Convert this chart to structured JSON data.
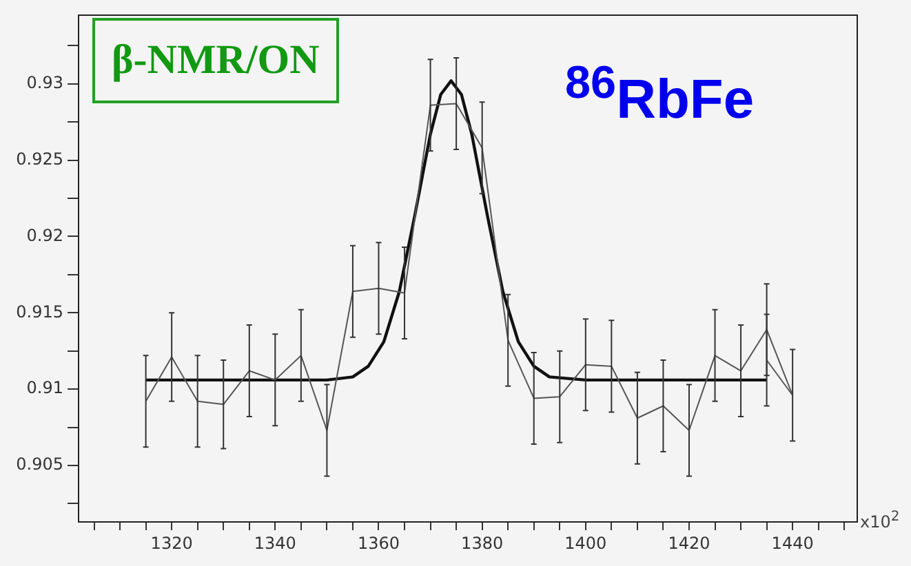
{
  "chart_data": {
    "type": "line",
    "xlim": [
      1302,
      1452.5
    ],
    "ylim": [
      0.9013,
      0.9345
    ],
    "xticks": [
      {
        "value": 1305,
        "label": null
      },
      {
        "value": 1310,
        "label": null
      },
      {
        "value": 1315,
        "label": null
      },
      1320,
      {
        "value": 1325,
        "label": null
      },
      {
        "value": 1330,
        "label": null
      },
      {
        "value": 1335,
        "label": null
      },
      1340,
      {
        "value": 1345,
        "label": null
      },
      {
        "value": 1350,
        "label": null
      },
      {
        "value": 1355,
        "label": null
      },
      1360,
      {
        "value": 1365,
        "label": null
      },
      {
        "value": 1370,
        "label": null
      },
      {
        "value": 1375,
        "label": null
      },
      1380,
      {
        "value": 1385,
        "label": null
      },
      {
        "value": 1390,
        "label": null
      },
      {
        "value": 1395,
        "label": null
      },
      1400,
      {
        "value": 1405,
        "label": null
      },
      {
        "value": 1410,
        "label": null
      },
      {
        "value": 1415,
        "label": null
      },
      1420,
      {
        "value": 1425,
        "label": null
      },
      {
        "value": 1430,
        "label": null
      },
      {
        "value": 1435,
        "label": null
      },
      1440,
      {
        "value": 1445,
        "label": null
      },
      {
        "value": 1450,
        "label": null
      }
    ],
    "yticks": [
      {
        "value": 0.9025,
        "label": null
      },
      0.905,
      {
        "value": 0.9075,
        "label": null
      },
      0.91,
      {
        "value": 0.9125,
        "label": null
      },
      0.915,
      {
        "value": 0.9175,
        "label": null
      },
      0.92,
      {
        "value": 0.9225,
        "label": null
      },
      0.925,
      {
        "value": 0.9275,
        "label": null
      },
      0.93,
      {
        "value": 0.9325,
        "label": null
      }
    ],
    "grid": false,
    "legend": false,
    "marker": "none",
    "annotations": [
      "β-NMR/ON",
      "$^{86}$RbFe",
      "x10$^{2}$"
    ],
    "series": [
      {
        "color": "#555555",
        "x": [
          1315,
          1320,
          1325,
          1330,
          1335,
          1340,
          1345,
          1350,
          1355,
          1360,
          1365,
          1370,
          1375,
          1380,
          1385,
          1390,
          1395,
          1400,
          1405,
          1410,
          1415,
          1420,
          1425,
          1430,
          1435,
          1440
        ],
        "values": [
          0.9092,
          0.9121,
          0.9092,
          0.909,
          0.9112,
          0.9106,
          0.9122,
          0.9073,
          0.9164,
          0.9166,
          0.9163,
          0.9286,
          0.9287,
          0.9258,
          0.9132,
          0.9094,
          0.9095,
          0.9116,
          0.9115,
          0.9081,
          0.9089,
          0.9073,
          0.9122,
          0.9112,
          0.9139,
          0.9096
        ],
        "errors": [
          0.003,
          0.0029,
          0.003,
          0.0029,
          0.003,
          0.003,
          0.003,
          0.003,
          0.003,
          0.003,
          0.003,
          0.003,
          0.003,
          0.003,
          0.003,
          0.003,
          0.003,
          0.003,
          0.003,
          0.003,
          0.003,
          0.003,
          0.003,
          0.003,
          0.003,
          0.003
        ]
      },
      {
        "color": "#555555",
        "x": [
          1435,
          1440
        ],
        "values": [
          0.9119,
          0.9096
        ],
        "errors": [
          0.003,
          null
        ]
      },
      {
        "color": "#111111",
        "x": [
          1315,
          1350,
          1355,
          1358,
          1361,
          1364,
          1367,
          1370,
          1372,
          1374,
          1376,
          1378,
          1381,
          1384,
          1387,
          1390,
          1393,
          1400,
          1435
        ],
        "values": [
          0.9106,
          0.9106,
          0.9108,
          0.9115,
          0.9131,
          0.9164,
          0.9214,
          0.9267,
          0.9293,
          0.9302,
          0.9293,
          0.9267,
          0.9214,
          0.9164,
          0.9131,
          0.9115,
          0.9108,
          0.9106,
          0.9106
        ]
      }
    ]
  }
}
